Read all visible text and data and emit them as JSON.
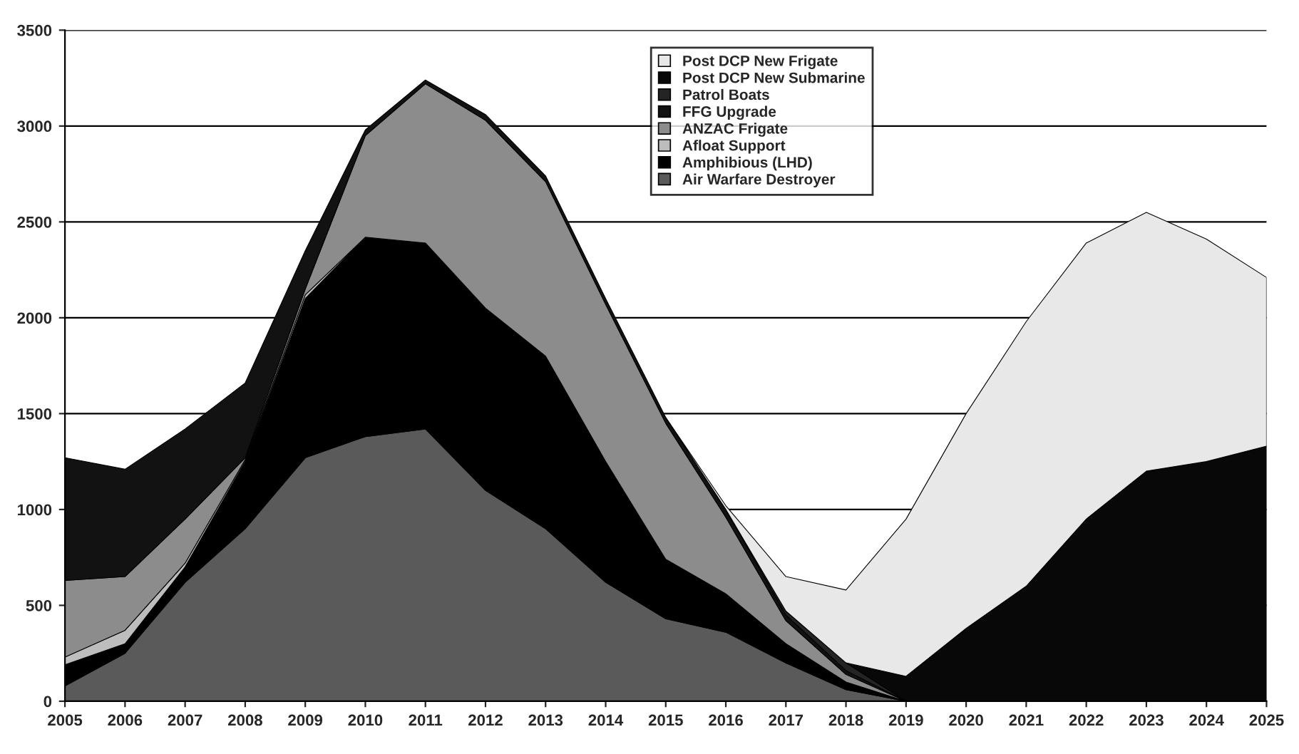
{
  "chart_data": {
    "type": "area",
    "stacked": true,
    "categories": [
      "2005",
      "2006",
      "2007",
      "2008",
      "2009",
      "2010",
      "2011",
      "2012",
      "2013",
      "2014",
      "2015",
      "2016",
      "2017",
      "2018",
      "2019",
      "2020",
      "2021",
      "2022",
      "2023",
      "2024",
      "2025"
    ],
    "ylim": [
      0,
      3500
    ],
    "yticks": [
      0,
      500,
      1000,
      1500,
      2000,
      2500,
      3000,
      3500
    ],
    "grid": "y",
    "legend": "top",
    "series": [
      {
        "name": "Air Warfare Destroyer",
        "color": "#5a5a5a",
        "values": [
          80,
          250,
          620,
          900,
          1270,
          1380,
          1420,
          1100,
          900,
          620,
          430,
          360,
          200,
          60,
          0,
          null,
          null,
          null,
          null,
          null,
          null
        ]
      },
      {
        "name": "Amphibious (LHD)",
        "color": "#000000",
        "values": [
          110,
          50,
          80,
          350,
          830,
          1040,
          970,
          950,
          900,
          630,
          310,
          200,
          100,
          40,
          0,
          null,
          null,
          null,
          null,
          null,
          null
        ]
      },
      {
        "name": "Afloat Support",
        "color": "#bdbdbd",
        "values": [
          40,
          70,
          20,
          10,
          20,
          0,
          null,
          null,
          null,
          null,
          null,
          null,
          null,
          null,
          null,
          null,
          null,
          null,
          null,
          null,
          null
        ]
      },
      {
        "name": "ANZAC Frigate",
        "color": "#8c8c8c",
        "values": [
          400,
          280,
          230,
          10,
          30,
          530,
          830,
          980,
          910,
          820,
          710,
          400,
          120,
          40,
          0,
          null,
          null,
          null,
          null,
          null,
          null
        ]
      },
      {
        "name": "FFG Upgrade",
        "color": "#121212",
        "values": [
          640,
          560,
          470,
          390,
          200,
          30,
          20,
          30,
          30,
          30,
          30,
          40,
          30,
          20,
          0,
          null,
          null,
          null,
          null,
          null,
          null
        ]
      },
      {
        "name": "Patrol Boats",
        "color": "#242424",
        "values": [
          null,
          null,
          null,
          null,
          null,
          null,
          null,
          null,
          null,
          null,
          null,
          0,
          20,
          40,
          0,
          null,
          null,
          null,
          null,
          null,
          null
        ]
      },
      {
        "name": "Post DCP New Submarine",
        "color": "#080808",
        "values": [
          null,
          null,
          null,
          null,
          null,
          null,
          null,
          null,
          null,
          null,
          null,
          null,
          null,
          0,
          130,
          380,
          600,
          950,
          1200,
          1250,
          1330
        ]
      },
      {
        "name": "Post DCP New Frigate",
        "color": "#e8e8e8",
        "values": [
          null,
          null,
          null,
          null,
          null,
          null,
          null,
          null,
          null,
          null,
          0,
          20,
          180,
          380,
          820,
          1120,
          1380,
          1440,
          1350,
          1160,
          880
        ]
      }
    ]
  }
}
